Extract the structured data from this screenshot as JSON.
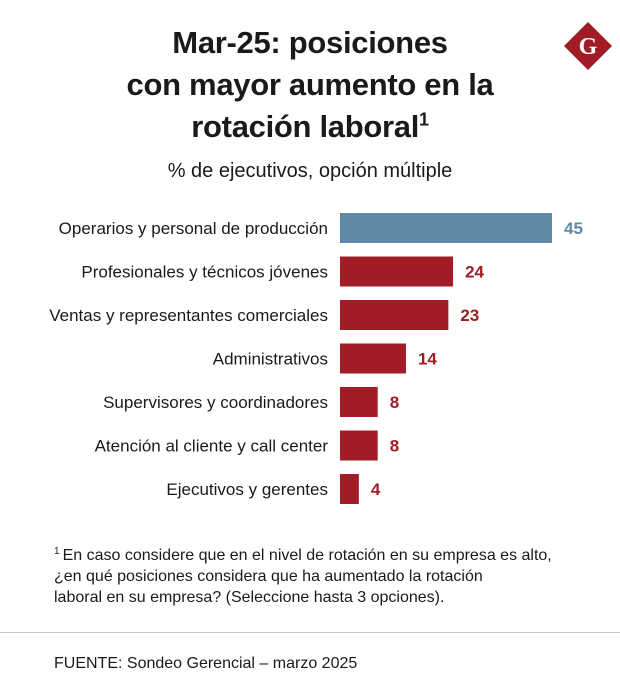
{
  "header": {
    "title_lines": [
      "Mar-25: posiciones",
      "con mayor aumento en la",
      "rotación laboral"
    ],
    "title_superscript": "1",
    "subtitle": "% de ejecutivos, opción múltiple",
    "logo_letter": "G"
  },
  "colors": {
    "highlight": "#5e8aa6",
    "bar": "#a11c24",
    "logo": "#a11c24"
  },
  "chart_data": {
    "type": "bar",
    "orientation": "horizontal",
    "title": "Mar-25: posiciones con mayor aumento en la rotación laboral",
    "subtitle": "% de ejecutivos, opción múltiple",
    "categories": [
      "Operarios y personal de producción",
      "Profesionales y técnicos jóvenes",
      "Ventas y representantes comerciales",
      "Administrativos",
      "Supervisores y coordinadores",
      "Atención al cliente y call center",
      "Ejecutivos y gerentes"
    ],
    "values": [
      45,
      24,
      23,
      14,
      8,
      8,
      4
    ],
    "highlight_index": 0,
    "xlim": [
      0,
      45
    ],
    "xlabel": "",
    "ylabel": ""
  },
  "footnote": {
    "marker": "1",
    "lines": [
      "En caso considere que en el nivel de rotación en su empresa es alto,",
      "¿en qué posiciones considera que ha aumentado la rotación",
      "laboral en su empresa?  (Seleccione hasta 3 opciones)."
    ]
  },
  "source": "FUENTE: Sondeo Gerencial – marzo 2025"
}
